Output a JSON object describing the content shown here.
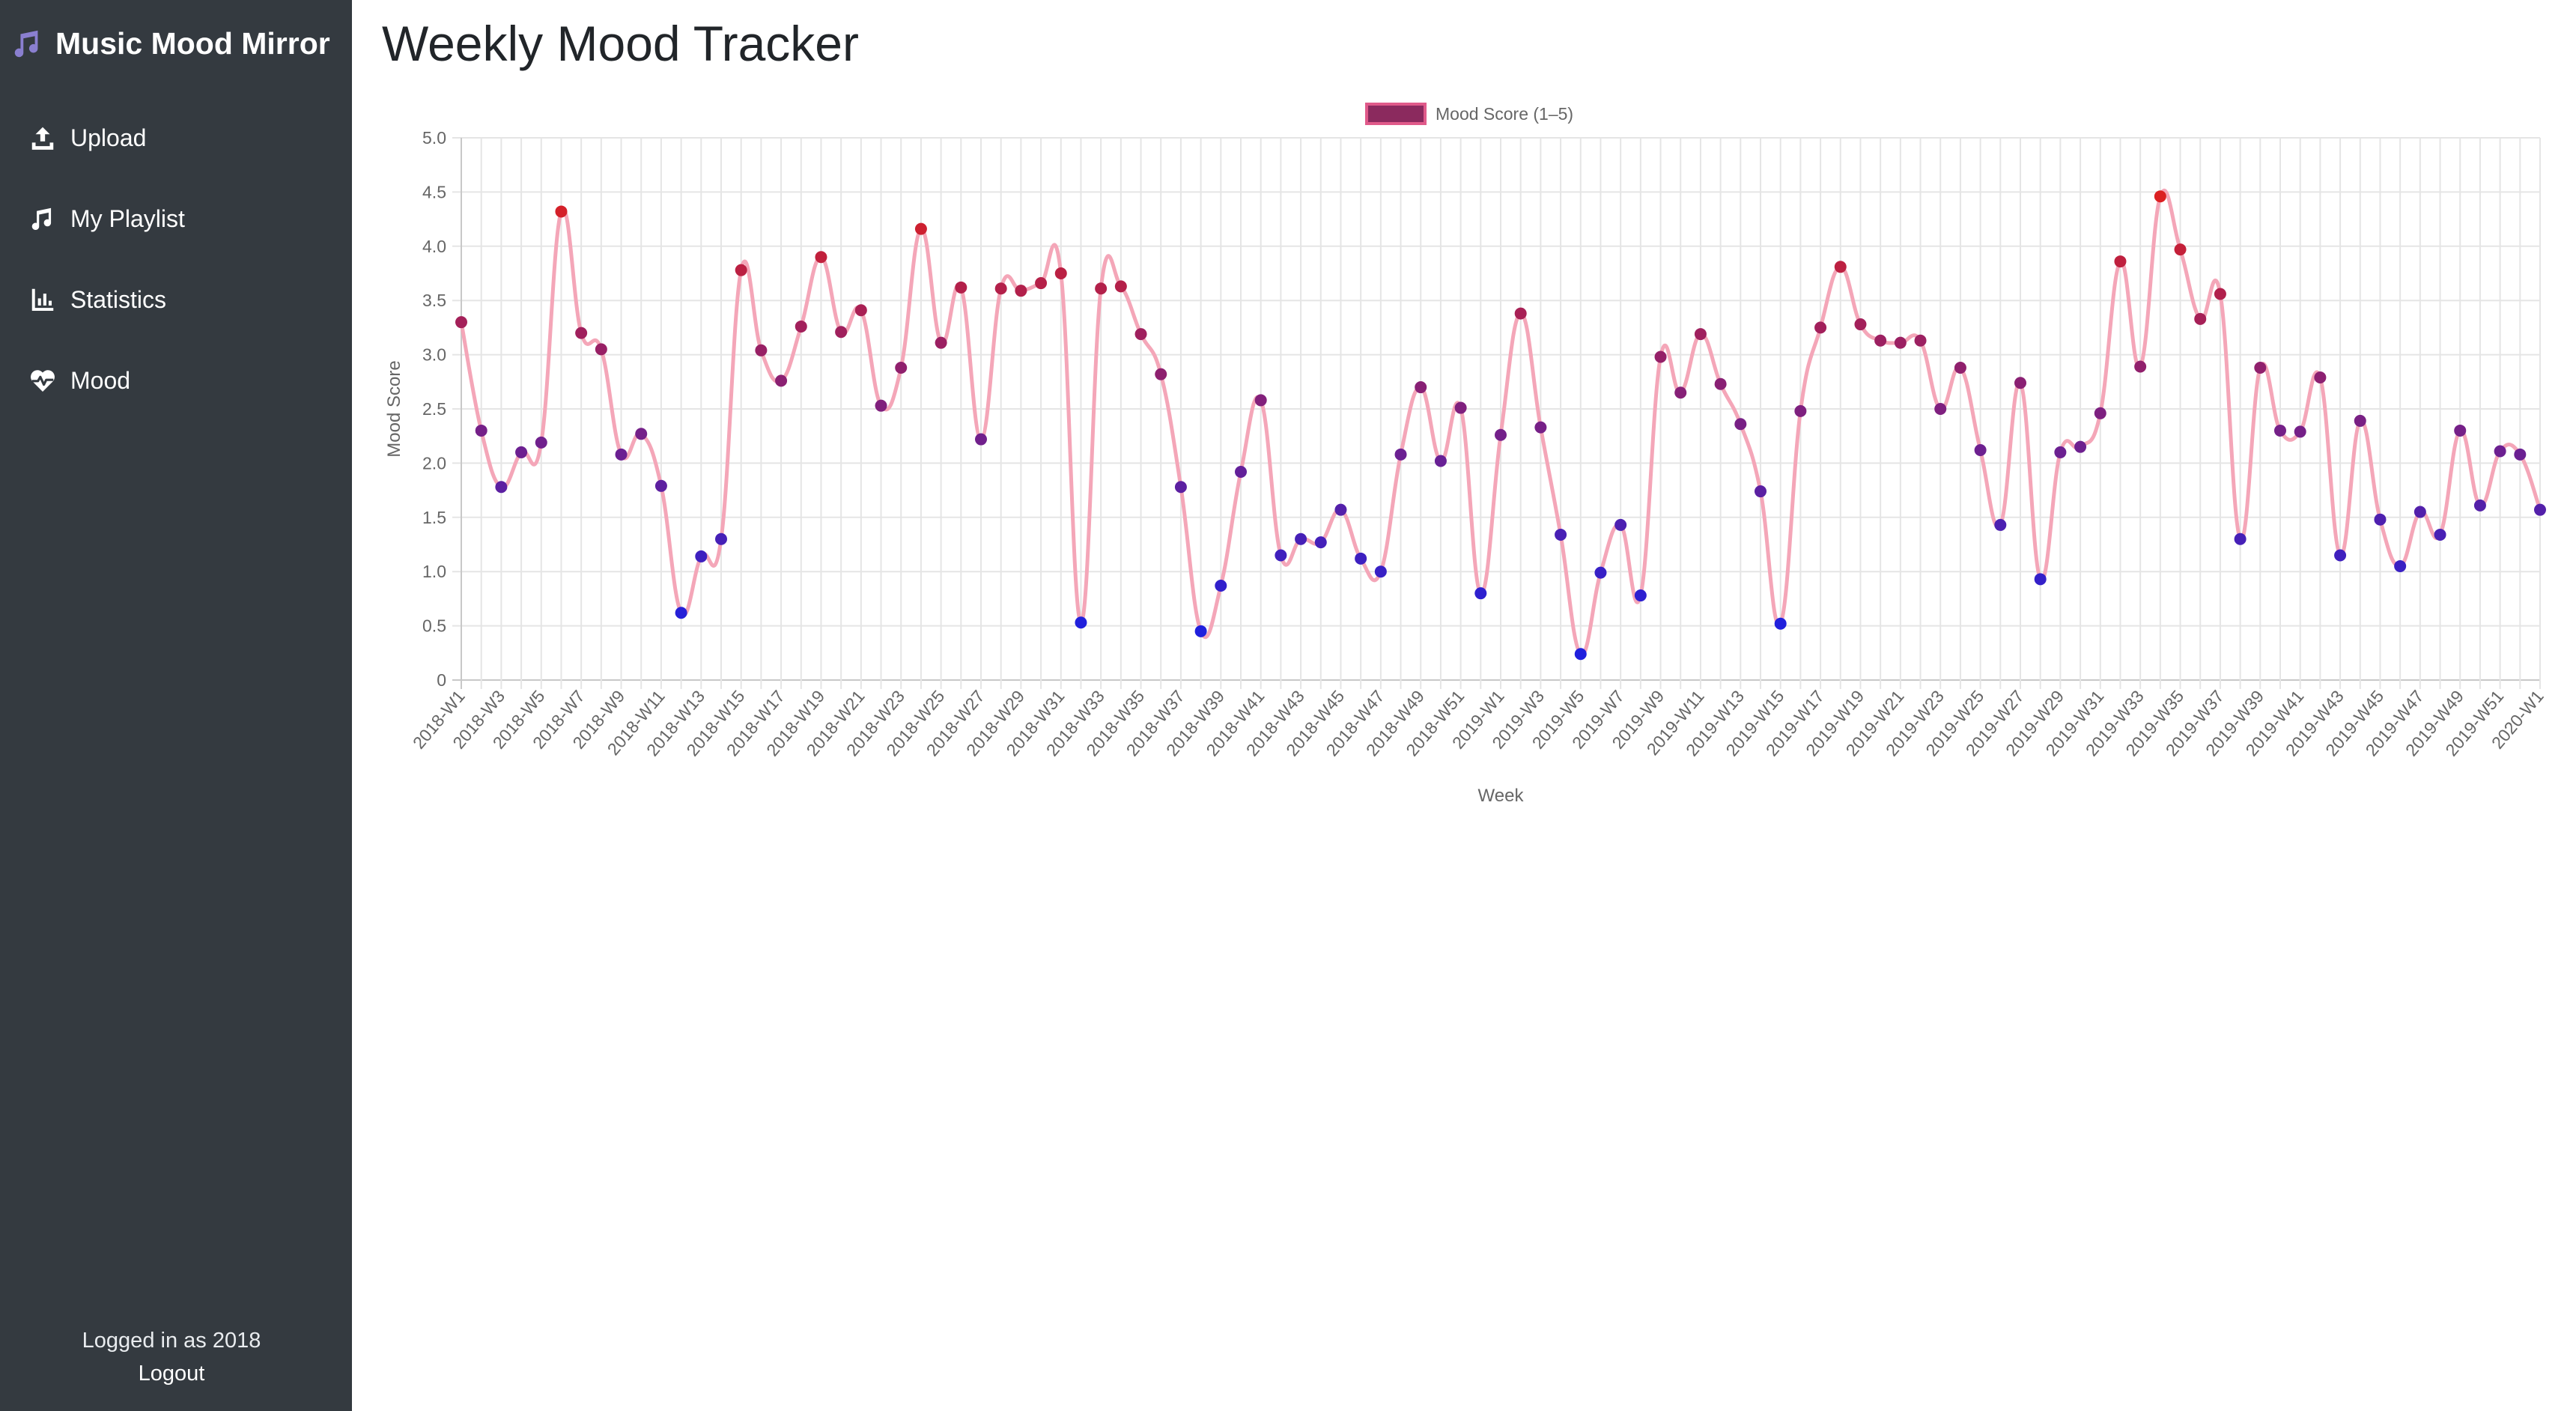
{
  "sidebar": {
    "brand_title": "Music Mood Mirror",
    "brand_icon": "music-note-icon",
    "nav": [
      {
        "label": "Upload",
        "icon": "upload-icon"
      },
      {
        "label": "My Playlist",
        "icon": "music-note-icon"
      },
      {
        "label": "Statistics",
        "icon": "bar-chart-icon"
      },
      {
        "label": "Mood",
        "icon": "heart-pulse-icon"
      }
    ],
    "user_text": "Logged in as 2018",
    "logout_label": "Logout"
  },
  "main": {
    "title": "Weekly Mood Tracker"
  },
  "colors": {
    "sidebar_bg": "#343a40",
    "line": "#f4a6b8",
    "low_point": "#2020dd",
    "high_point": "#dd2020",
    "legend_fill": "#8b2a5e",
    "legend_border": "#e05a8a"
  },
  "chart_data": {
    "type": "line",
    "legend": "Mood Score (1–5)",
    "xlabel": "Week",
    "ylabel": "Mood Score",
    "ylim": [
      0,
      5
    ],
    "yticks": [
      "0",
      "0.5",
      "1.0",
      "1.5",
      "2.0",
      "2.5",
      "3.0",
      "3.5",
      "4.0",
      "4.5",
      "5.0"
    ],
    "grid": true,
    "legend_position": "top",
    "x": [
      "2018-W1",
      "2018-W2",
      "2018-W3",
      "2018-W4",
      "2018-W5",
      "2018-W6",
      "2018-W7",
      "2018-W8",
      "2018-W9",
      "2018-W10",
      "2018-W11",
      "2018-W12",
      "2018-W13",
      "2018-W14",
      "2018-W15",
      "2018-W16",
      "2018-W17",
      "2018-W18",
      "2018-W19",
      "2018-W20",
      "2018-W21",
      "2018-W22",
      "2018-W23",
      "2018-W24",
      "2018-W25",
      "2018-W26",
      "2018-W27",
      "2018-W28",
      "2018-W29",
      "2018-W30",
      "2018-W31",
      "2018-W32",
      "2018-W33",
      "2018-W34",
      "2018-W35",
      "2018-W36",
      "2018-W37",
      "2018-W38",
      "2018-W39",
      "2018-W40",
      "2018-W41",
      "2018-W42",
      "2018-W43",
      "2018-W44",
      "2018-W45",
      "2018-W46",
      "2018-W47",
      "2018-W48",
      "2018-W49",
      "2018-W50",
      "2018-W51",
      "2018-W52",
      "2019-W1",
      "2019-W2",
      "2019-W3",
      "2019-W4",
      "2019-W5",
      "2019-W6",
      "2019-W7",
      "2019-W8",
      "2019-W9",
      "2019-W10",
      "2019-W11",
      "2019-W12",
      "2019-W13",
      "2019-W14",
      "2019-W15",
      "2019-W16",
      "2019-W17",
      "2019-W18",
      "2019-W19",
      "2019-W20",
      "2019-W21",
      "2019-W22",
      "2019-W23",
      "2019-W24",
      "2019-W25",
      "2019-W26",
      "2019-W27",
      "2019-W28",
      "2019-W29",
      "2019-W30",
      "2019-W31",
      "2019-W32",
      "2019-W33",
      "2019-W34",
      "2019-W35",
      "2019-W36",
      "2019-W37",
      "2019-W38",
      "2019-W39",
      "2019-W40",
      "2019-W41",
      "2019-W42",
      "2019-W43",
      "2019-W44",
      "2019-W45",
      "2019-W46",
      "2019-W47",
      "2019-W48",
      "2019-W49",
      "2019-W50",
      "2019-W51",
      "2019-W52",
      "2020-W1"
    ],
    "x_tick_labels": [
      "2018-W1",
      "2018-W3",
      "2018-W5",
      "2018-W7",
      "2018-W9",
      "2018-W11",
      "2018-W13",
      "2018-W15",
      "2018-W17",
      "2018-W19",
      "2018-W21",
      "2018-W23",
      "2018-W25",
      "2018-W27",
      "2018-W29",
      "2018-W31",
      "2018-W33",
      "2018-W35",
      "2018-W37",
      "2018-W39",
      "2018-W41",
      "2018-W43",
      "2018-W45",
      "2018-W47",
      "2018-W49",
      "2018-W51",
      "2019-W1",
      "2019-W3",
      "2019-W5",
      "2019-W7",
      "2019-W9",
      "2019-W11",
      "2019-W13",
      "2019-W15",
      "2019-W17",
      "2019-W19",
      "2019-W21",
      "2019-W23",
      "2019-W25",
      "2019-W27",
      "2019-W29",
      "2019-W31",
      "2019-W33",
      "2019-W35",
      "2019-W37",
      "2019-W39",
      "2019-W41",
      "2019-W43",
      "2019-W45",
      "2019-W47",
      "2019-W49",
      "2019-W51",
      "2020-W1"
    ],
    "series": [
      {
        "name": "Mood Score (1–5)",
        "values": [
          3.3,
          2.3,
          1.78,
          2.1,
          2.19,
          4.32,
          3.2,
          3.05,
          2.08,
          2.27,
          1.79,
          0.62,
          1.14,
          1.3,
          3.78,
          3.04,
          2.76,
          3.26,
          3.9,
          3.21,
          3.41,
          2.53,
          2.88,
          4.16,
          3.11,
          3.62,
          2.22,
          3.61,
          3.59,
          3.66,
          3.75,
          0.53,
          3.61,
          3.63,
          3.19,
          2.82,
          1.78,
          0.45,
          0.87,
          1.92,
          2.58,
          1.15,
          1.3,
          1.27,
          1.57,
          1.12,
          1.0,
          2.08,
          2.7,
          2.02,
          2.51,
          0.8,
          2.26,
          3.38,
          2.33,
          1.34,
          0.24,
          0.99,
          1.43,
          0.78,
          2.98,
          2.65,
          3.19,
          2.73,
          2.36,
          1.74,
          0.52,
          2.48,
          3.25,
          3.81,
          3.28,
          3.13,
          3.11,
          3.13,
          2.5,
          2.88,
          2.12,
          1.43,
          2.74,
          0.93,
          2.1,
          2.15,
          2.46,
          3.86,
          2.89,
          4.46,
          3.97,
          3.33,
          3.56,
          1.3,
          2.88,
          2.3,
          2.29,
          2.79,
          1.15,
          2.39,
          1.48,
          1.05,
          1.55,
          1.34,
          2.3,
          1.61,
          2.11,
          2.08,
          1.57
        ]
      }
    ]
  }
}
